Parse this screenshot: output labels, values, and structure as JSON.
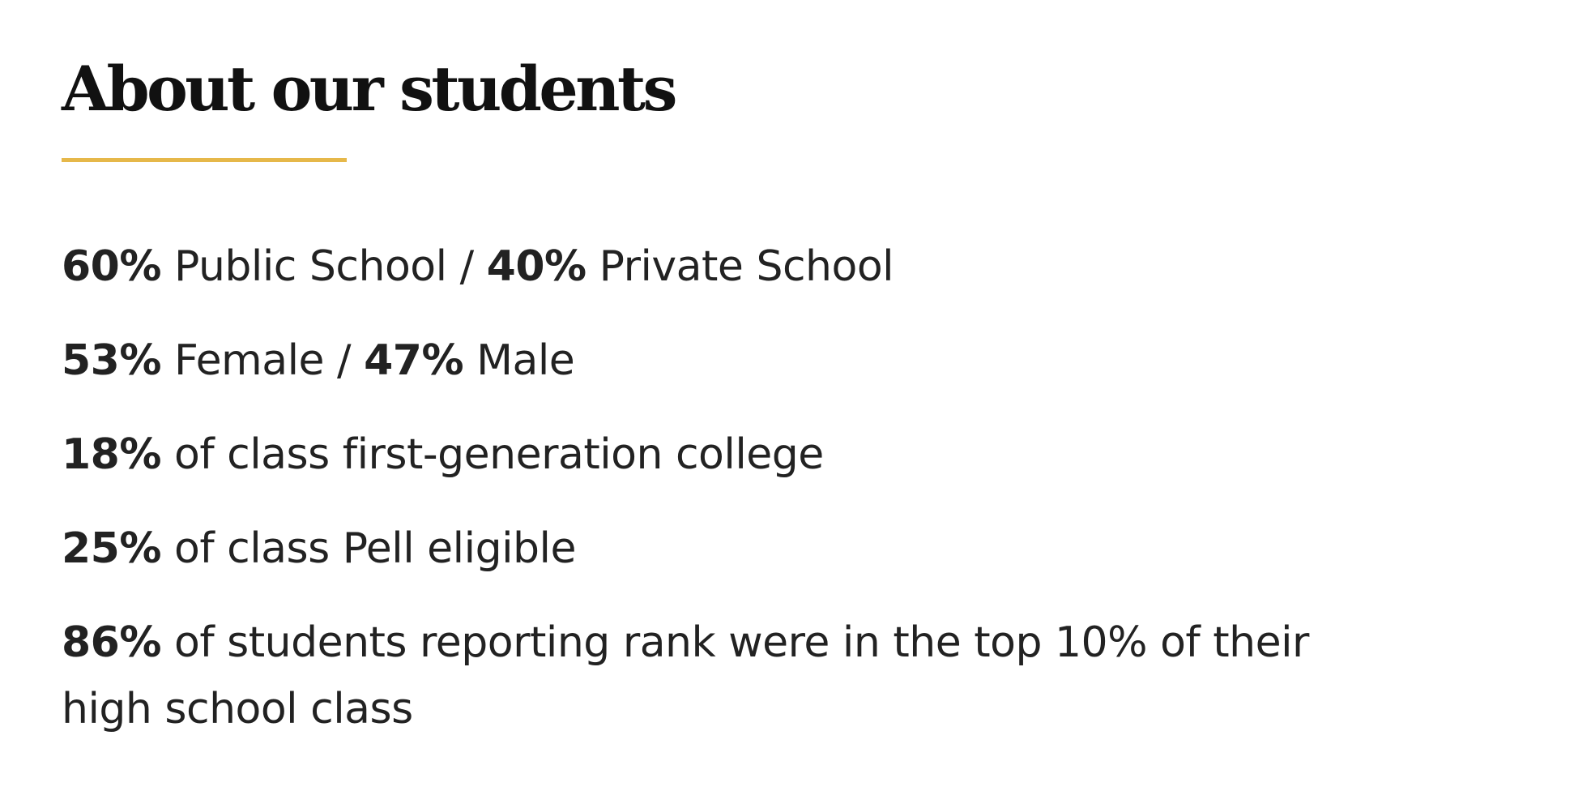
{
  "section": {
    "title": "About our students",
    "accent_color": "#e6b84a"
  },
  "stats": [
    {
      "value_1": "60%",
      "label_1": " Public School / ",
      "value_2": "40%",
      "label_2": " Private School"
    },
    {
      "value_1": "53%",
      "label_1": " Female / ",
      "value_2": "47%",
      "label_2": " Male"
    },
    {
      "value_1": "18%",
      "label_1": " of class first-generation college"
    },
    {
      "value_1": "25%",
      "label_1": " of class Pell eligible"
    },
    {
      "value_1": "86%",
      "label_1": " of students reporting rank were in the top 10% of their high school class"
    }
  ]
}
